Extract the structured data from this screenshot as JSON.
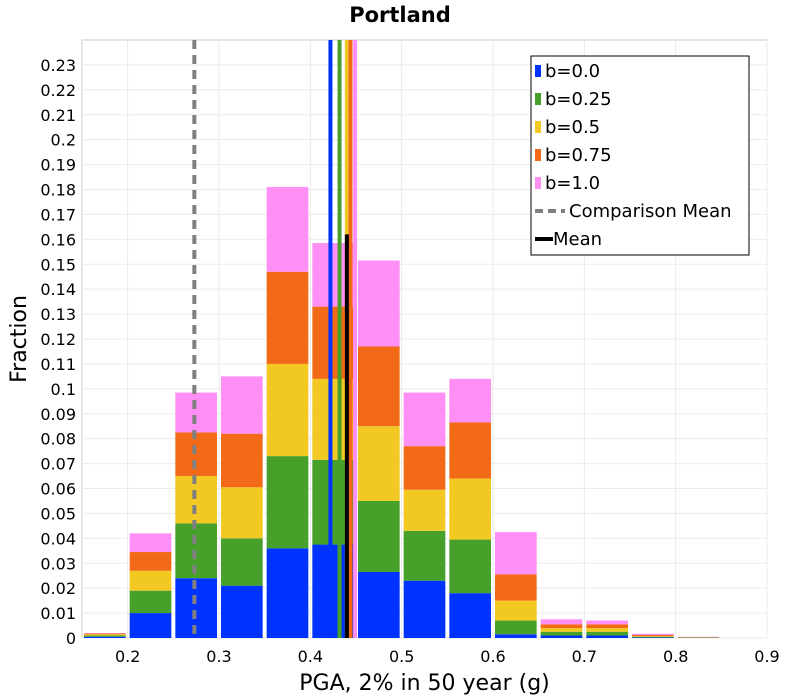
{
  "chart_data": {
    "type": "bar",
    "stacked": true,
    "title": "Portland",
    "xlabel": "PGA, 2% in 50 year (g)",
    "ylabel": "Fraction",
    "xlim": [
      0.15,
      0.9
    ],
    "ylim": [
      0,
      0.24
    ],
    "x_ticks": [
      "0.2",
      "0.3",
      "0.4",
      "0.5",
      "0.6",
      "0.7",
      "0.8",
      "0.9"
    ],
    "y_ticks": [
      "0",
      "0.01",
      "0.02",
      "0.03",
      "0.04",
      "0.05",
      "0.06",
      "0.07",
      "0.08",
      "0.09",
      "0.1",
      "0.11",
      "0.12",
      "0.13",
      "0.14",
      "0.15",
      "0.16",
      "0.17",
      "0.18",
      "0.19",
      "0.2",
      "0.21",
      "0.22",
      "0.23"
    ],
    "bin_width": 0.05,
    "x": [
      0.175,
      0.225,
      0.275,
      0.325,
      0.375,
      0.425,
      0.475,
      0.525,
      0.575,
      0.625,
      0.675,
      0.725,
      0.775,
      0.825,
      0.875
    ],
    "series": [
      {
        "name": "b=0.0",
        "color": "#0033ff",
        "values": [
          0.0005,
          0.01,
          0.024,
          0.021,
          0.036,
          0.0375,
          0.0265,
          0.023,
          0.018,
          0.0015,
          0.001,
          0.001,
          0.0002,
          0.0001,
          0.0
        ]
      },
      {
        "name": "b=0.25",
        "color": "#46a02a",
        "values": [
          0.0005,
          0.009,
          0.022,
          0.019,
          0.037,
          0.034,
          0.0285,
          0.02,
          0.0215,
          0.0055,
          0.0015,
          0.0015,
          0.0003,
          0.0001,
          0.0
        ]
      },
      {
        "name": "b=0.5",
        "color": "#f2c823",
        "values": [
          0.0005,
          0.008,
          0.019,
          0.0205,
          0.037,
          0.0325,
          0.03,
          0.0165,
          0.0245,
          0.008,
          0.0015,
          0.0015,
          0.0003,
          0.0001,
          0.0
        ]
      },
      {
        "name": "b=0.75",
        "color": "#f26a17",
        "values": [
          0.0003,
          0.0075,
          0.0175,
          0.0215,
          0.037,
          0.029,
          0.032,
          0.0175,
          0.0225,
          0.0105,
          0.0015,
          0.0015,
          0.0004,
          0.0001,
          0.0
        ]
      },
      {
        "name": "b=1.0",
        "color": "#ff8ef5",
        "values": [
          0.0002,
          0.0075,
          0.016,
          0.023,
          0.034,
          0.0255,
          0.0345,
          0.0215,
          0.0175,
          0.017,
          0.002,
          0.0015,
          0.0005,
          0.0001,
          0.0
        ]
      }
    ],
    "vertical_lines": [
      {
        "name": "b=0.0 mean",
        "x": 0.422,
        "color": "#0033ff",
        "style": "solid"
      },
      {
        "name": "b=0.25 mean",
        "x": 0.432,
        "color": "#46a02a",
        "style": "solid"
      },
      {
        "name": "b=0.5 mean",
        "x": 0.44,
        "color": "#f2c823",
        "style": "solid"
      },
      {
        "name": "b=0.75 mean",
        "x": 0.444,
        "color": "#f26a17",
        "style": "solid"
      },
      {
        "name": "b=1.0 mean",
        "x": 0.449,
        "color": "#ff8ef5",
        "style": "solid"
      },
      {
        "name": "Mean",
        "x": 0.44,
        "color": "#000000",
        "style": "solid",
        "ymax": 0.162
      },
      {
        "name": "Comparison Mean",
        "x": 0.273,
        "color": "#808080",
        "style": "dashed"
      }
    ],
    "legend": {
      "position": "top-right",
      "entries": [
        {
          "label": "b=0.0",
          "color": "#0033ff",
          "kind": "box"
        },
        {
          "label": "b=0.25",
          "color": "#46a02a",
          "kind": "box"
        },
        {
          "label": "b=0.5",
          "color": "#f2c823",
          "kind": "box"
        },
        {
          "label": "b=0.75",
          "color": "#f26a17",
          "kind": "box"
        },
        {
          "label": "b=1.0",
          "color": "#ff8ef5",
          "kind": "box"
        },
        {
          "label": "Comparison Mean",
          "color": "#808080",
          "kind": "dashed"
        },
        {
          "label": "Mean",
          "color": "#000000",
          "kind": "line"
        }
      ]
    },
    "grid": true
  }
}
